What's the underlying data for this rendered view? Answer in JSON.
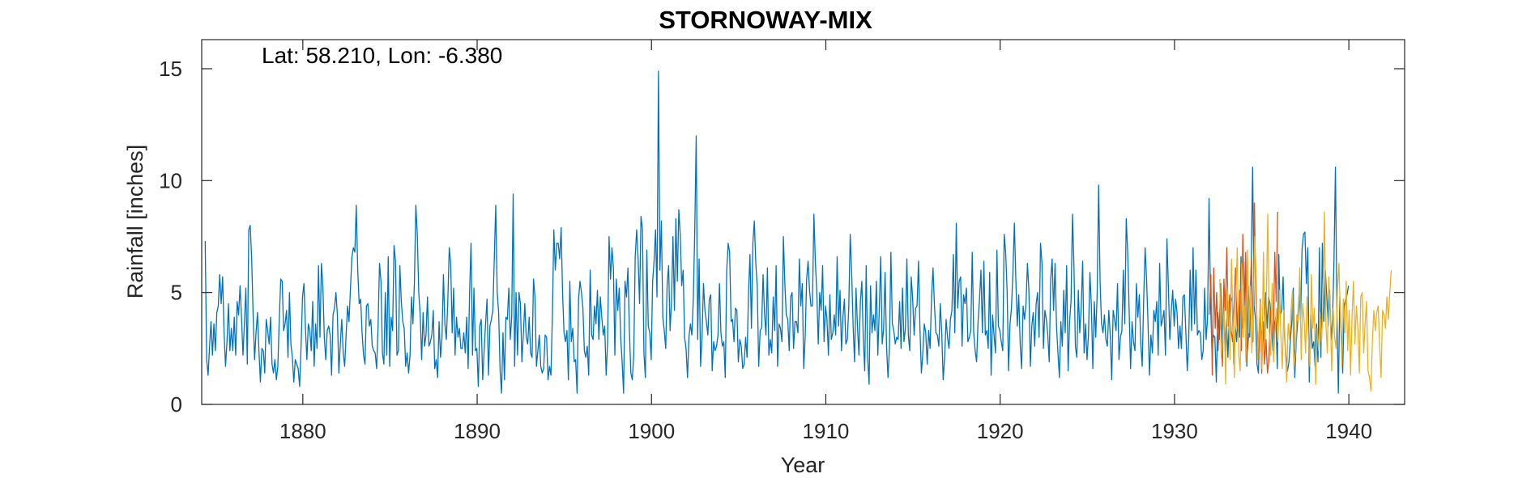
{
  "chart_data": {
    "type": "line",
    "title": "STORNOWAY-MIX",
    "annotation": "Lat: 58.210, Lon: -6.380",
    "xlabel": "Year",
    "ylabel": "Rainfall [inches]",
    "xlim": [
      1874.2,
      1943.2
    ],
    "ylim": [
      0,
      16.3
    ],
    "xticks": [
      1880,
      1890,
      1900,
      1910,
      1920,
      1930,
      1940
    ],
    "yticks": [
      0,
      5,
      10,
      15
    ],
    "grid": false,
    "colors": {
      "blue": "#0072BD",
      "red": "#D95319",
      "yellow": "#EDB120",
      "axis": "#262626"
    },
    "series": [
      {
        "name": "blue",
        "color": "#0072BD",
        "x_start": 1874.4,
        "x_step": 0.08333,
        "values": [
          7.3,
          2.0,
          1.3,
          2.6,
          3.7,
          2.2,
          3.6,
          2.4,
          4.1,
          4.4,
          5.8,
          4.5,
          5.7,
          3.2,
          1.7,
          2.8,
          4.5,
          2.4,
          3.4,
          2.4,
          3.9,
          2.2,
          4.6,
          4.0,
          5.3,
          3.9,
          2.2,
          3.6,
          5.2,
          1.8,
          7.8,
          8.0,
          6.5,
          4.0,
          2.0,
          3.2,
          4.1,
          2.4,
          1.0,
          2.5,
          2.4,
          1.4,
          3.8,
          3.3,
          2.7,
          3.9,
          1.8,
          1.4,
          2.0,
          1.1,
          1.7,
          3.8,
          5.6,
          5.5,
          3.3,
          3.6,
          4.2,
          2.1,
          5.0,
          2.7,
          2.1,
          1.0,
          2.0,
          1.8,
          1.6,
          0.8,
          2.6,
          4.8,
          5.4,
          3.4,
          2.0,
          3.6,
          3.3,
          2.4,
          4.6,
          1.7,
          3.6,
          2.5,
          6.2,
          3.0,
          6.3,
          5.3,
          3.0,
          2.0,
          3.3,
          3.5,
          3.1,
          1.3,
          4.0,
          4.3,
          5.0,
          4.0,
          1.4,
          2.7,
          3.8,
          2.3,
          1.7,
          3.1,
          4.4,
          3.7,
          5.2,
          6.6,
          7.0,
          6.8,
          8.9,
          6.0,
          4.5,
          4.7,
          3.2,
          2.2,
          1.8,
          4.4,
          4.5,
          3.5,
          3.8,
          2.6,
          2.4,
          2.3,
          1.6,
          3.5,
          6.3,
          5.5,
          2.3,
          1.8,
          5.0,
          2.2,
          6.6,
          1.7,
          3.9,
          3.3,
          7.1,
          6.4,
          2.2,
          2.4,
          6.2,
          4.6,
          3.7,
          3.4,
          1.7,
          2.3,
          1.4,
          2.2,
          4.8,
          3.6,
          5.4,
          8.9,
          7.6,
          5.0,
          4.0,
          2.0,
          4.1,
          2.6,
          3.1,
          4.8,
          2.6,
          2.8,
          3.1,
          4.2,
          1.6,
          2.0,
          1.2,
          3.7,
          2.1,
          3.0,
          5.8,
          3.6,
          2.9,
          4.6,
          7.0,
          6.3,
          3.2,
          5.2,
          2.2,
          3.9,
          3.0,
          3.4,
          2.5,
          2.5,
          3.2,
          2.3,
          3.9,
          1.6,
          5.0,
          7.2,
          2.2,
          5.2,
          2.4,
          2.5,
          0.8,
          3.5,
          3.8,
          1.1,
          2.4,
          3.6,
          4.7,
          1.3,
          3.5,
          3.8,
          4.2,
          6.5,
          8.9,
          5.0,
          4.1,
          1.5,
          0.5,
          3.2,
          1.1,
          3.9,
          3.8,
          5.2,
          2.9,
          3.9,
          9.4,
          1.7,
          5.0,
          2.2,
          5.0,
          4.5,
          1.9,
          3.1,
          4.5,
          3.0,
          2.7,
          3.9,
          2.3,
          2.1,
          5.6,
          4.8,
          1.7,
          2.4,
          3.1,
          1.7,
          1.4,
          1.6,
          3.1,
          3.0,
          1.1,
          1.7,
          1.3,
          4.0,
          7.8,
          6.0,
          7.2,
          7.2,
          6.5,
          7.9,
          5.0,
          3.2,
          2.8,
          3.3,
          1.1,
          5.5,
          2.8,
          3.4,
          1.9,
          2.0,
          0.5,
          4.7,
          5.5,
          5.0,
          4.3,
          2.4,
          2.1,
          2.6,
          1.3,
          6.0,
          3.1,
          2.9,
          4.4,
          3.6,
          5.1,
          2.9,
          4.8,
          3.9,
          3.1,
          3.5,
          1.3,
          2.8,
          7.5,
          5.6,
          7.0,
          6.1,
          2.2,
          5.6,
          4.2,
          5.2,
          3.0,
          1.9,
          0.5,
          5.5,
          4.8,
          6.1,
          3.3,
          1.4,
          1.1,
          2.2,
          6.6,
          7.8,
          6.5,
          4.5,
          8.4,
          7.8,
          2.3,
          1.2,
          6.9,
          3.5,
          3.2,
          2.0,
          5.5,
          6.4,
          7.8,
          4.8,
          14.9,
          6.0,
          8.2,
          3.9,
          3.3,
          2.5,
          5.4,
          6.2,
          3.3,
          4.6,
          7.5,
          4.2,
          8.3,
          5.5,
          8.7,
          7.6,
          5.3,
          6.0,
          3.0,
          2.5,
          1.2,
          3.0,
          3.6,
          3.1,
          4.7,
          7.8,
          12.0,
          2.9,
          6.5,
          1.7,
          3.0,
          5.4,
          4.2,
          3.7,
          3.1,
          4.7,
          4.9,
          1.5,
          2.8,
          2.4,
          2.6,
          3.1,
          5.4,
          3.2,
          2.6,
          2.8,
          1.2,
          6.0,
          7.2,
          6.8,
          3.7,
          3.8,
          2.8,
          4.3,
          4.2,
          1.9,
          2.9,
          2.6,
          1.6,
          1.8,
          3.0,
          2.1,
          5.0,
          6.7,
          3.4,
          7.2,
          8.2,
          6.3,
          5.3,
          1.7,
          3.3,
          3.4,
          5.8,
          4.1,
          3.1,
          6.1,
          2.2,
          2.9,
          2.3,
          4.8,
          3.3,
          6.2,
          1.7,
          3.6,
          3.4,
          2.8,
          7.5,
          5.4,
          4.0,
          3.8,
          2.4,
          4.8,
          5.0,
          2.5,
          3.7,
          3.7,
          3.2,
          6.5,
          4.4,
          5.4,
          1.6,
          3.0,
          5.6,
          6.4,
          5.1,
          4.4,
          4.4,
          8.5,
          6.4,
          5.0,
          2.7,
          5.0,
          4.2,
          6.2,
          2.8,
          4.4,
          3.8,
          2.2,
          4.9,
          2.9,
          3.2,
          4.0,
          3.1,
          6.6,
          3.5,
          5.1,
          2.4,
          3.9,
          4.7,
          2.7,
          2.9,
          4.3,
          7.6,
          5.9,
          3.5,
          1.9,
          5.2,
          3.5,
          2.2,
          4.6,
          5.5,
          2.9,
          1.5,
          6.2,
          2.1,
          0.9,
          5.3,
          3.2,
          4.0,
          3.3,
          5.5,
          2.2,
          4.2,
          6.6,
          2.7,
          3.4,
          5.9,
          2.6,
          1.2,
          2.5,
          6.8,
          3.6,
          3.3,
          2.7,
          3.0,
          2.9,
          4.6,
          2.5,
          5.2,
          2.8,
          3.4,
          6.5,
          3.1,
          2.4,
          5.7,
          4.7,
          3.1,
          4.3,
          4.4,
          6.4,
          3.4,
          1.4,
          2.3,
          3.6,
          3.2,
          1.8,
          3.3,
          2.5,
          4.8,
          6.1,
          4.4,
          3.2,
          3.1,
          2.6,
          4.5,
          3.2,
          1.1,
          2.1,
          3.8,
          3.0,
          2.5,
          3.8,
          4.2,
          6.7,
          3.2,
          8.1,
          4.3,
          5.5,
          5.7,
          2.6,
          4.9,
          4.5,
          5.2,
          2.8,
          3.0,
          3.3,
          6.8,
          3.2,
          2.4,
          1.9,
          3.7,
          4.7,
          6.0,
          3.2,
          6.4,
          3.1,
          3.3,
          2.5,
          5.9,
          1.3,
          4.0,
          3.1,
          2.3,
          6.9,
          3.5,
          3.3,
          2.8,
          2.4,
          7.6,
          6.8,
          5.1,
          1.5,
          3.6,
          4.3,
          5.9,
          8.1,
          5.6,
          3.5,
          4.9,
          2.7,
          1.6,
          4.4,
          3.8,
          4.5,
          6.3,
          5.1,
          1.7,
          3.5,
          4.1,
          2.6,
          4.5,
          5.0,
          3.0,
          7.2,
          6.3,
          2.5,
          4.2,
          3.8,
          3.1,
          1.9,
          5.6,
          6.5,
          4.2,
          6.3,
          3.5,
          2.3,
          1.2,
          3.7,
          2.6,
          5.1,
          3.2,
          6.2,
          1.5,
          3.7,
          4.6,
          8.5,
          6.2,
          2.6,
          2.1,
          5.1,
          3.2,
          4.3,
          6.4,
          2.3,
          3.6,
          2.0,
          3.1,
          5.9,
          4.4,
          1.6,
          4.6,
          3.0,
          5.0,
          9.8,
          5.5,
          3.6,
          3.2,
          4.0,
          2.9,
          2.6,
          4.2,
          3.1,
          1.1,
          4.2,
          3.8,
          3.3,
          5.4,
          2.0,
          3.0,
          3.3,
          6.0,
          3.6,
          8.3,
          6.8,
          4.2,
          1.6,
          3.7,
          2.8,
          2.4,
          5.4,
          3.9,
          4.9,
          2.7,
          1.7,
          4.7,
          7.0,
          5.6,
          3.6,
          1.3,
          3.1,
          2.3,
          4.2,
          3.7,
          4.6,
          2.2,
          6.3,
          3.5,
          3.8,
          4.2,
          2.2,
          7.4,
          5.3,
          2.9,
          4.2,
          5.1,
          3.5,
          4.7,
          4.1,
          2.5,
          3.5,
          2.5,
          4.8,
          4.9,
          3.3,
          1.5,
          2.9,
          6.0,
          3.3,
          7.0,
          3.6,
          6.0,
          3.1,
          3.3,
          3.2,
          2.0,
          2.4,
          5.2,
          2.9,
          3.9,
          9.2,
          4.7,
          2.4,
          3.1,
          3.0,
          1.0,
          4.1,
          2.9,
          5.4,
          2.4,
          4.8,
          2.4,
          3.8,
          2.1,
          4.1,
          4.8,
          4.6,
          1.8,
          3.5,
          2.8,
          4.4,
          3.0,
          6.6,
          3.4,
          3.9,
          6.4,
          1.7,
          5.3,
          3.0,
          6.2,
          10.6,
          4.4,
          3.8,
          1.8,
          1.4,
          4.0,
          3.3,
          3.0,
          3.5,
          5.0,
          3.4,
          4.8,
          4.5,
          3.4,
          2.4,
          3.6,
          3.9,
          1.6,
          6.7,
          4.0,
          4.2,
          5.7,
          3.0,
          2.1,
          1.5,
          1.9,
          2.9,
          3.7,
          5.2,
          1.2,
          2.8,
          3.7,
          5.0,
          3.8,
          6.9,
          7.6,
          7.7,
          5.4,
          7.0,
          1.0,
          4.0,
          2.5,
          2.8,
          1.7,
          3.6,
          1.9,
          7.0,
          2.1,
          7.2,
          3.7,
          6.0,
          4.9,
          3.5,
          5.1,
          2.9,
          3.8,
          6.4,
          10.6,
          4.3,
          0.5,
          4.8,
          3.1,
          1.4,
          4.4,
          4.7,
          4.9,
          5.3
        ]
      },
      {
        "name": "red",
        "color": "#D95319",
        "x_start": 1932.0,
        "x_step": 0.08333,
        "values": [
          4.0,
          5.8,
          1.3,
          6.1,
          3.4,
          5.0,
          2.4,
          4.0,
          3.2,
          1.7,
          5.6,
          4.2,
          7.0,
          3.5,
          4.9,
          3.3,
          2.8,
          4.4,
          6.1,
          3.5,
          3.2,
          5.1,
          2.4,
          7.6,
          4.5,
          6.8,
          2.3,
          3.0,
          5.0,
          6.5,
          2.8,
          9.0,
          4.9,
          3.3,
          2.3,
          4.7,
          1.4,
          3.7,
          1.8,
          2.9,
          1.4,
          2.0,
          4.2,
          3.6,
          2.8,
          6.8,
          4.6,
          8.6
        ]
      },
      {
        "name": "yellow",
        "color": "#EDB120",
        "x_start": 1932.6,
        "x_step": 0.08333,
        "values": [
          5.6,
          2.1,
          3.0,
          4.3,
          0.9,
          5.2,
          4.4,
          2.0,
          6.5,
          3.8,
          1.2,
          4.8,
          7.0,
          2.2,
          1.5,
          6.3,
          3.0,
          4.4,
          1.9,
          6.9,
          3.2,
          5.3,
          2.3,
          4.1,
          7.5,
          5.7,
          2.0,
          3.4,
          4.6,
          1.6,
          6.8,
          2.5,
          4.7,
          8.5,
          3.3,
          2.2,
          5.4,
          1.9,
          3.4,
          4.3,
          2.8,
          5.1,
          3.1,
          1.6,
          4.2,
          2.6,
          1.0,
          3.6,
          2.9,
          4.2,
          5.1,
          1.6,
          2.3,
          4.0,
          3.7,
          6.1,
          2.0,
          4.5,
          3.8,
          2.3,
          4.8,
          3.0,
          1.7,
          5.8,
          3.4,
          4.3,
          0.9,
          3.4,
          2.4,
          4.1,
          2.8,
          4.4,
          8.6,
          3.6,
          2.3,
          5.7,
          4.1,
          1.5,
          4.3,
          3.0,
          2.5,
          5.2,
          6.3,
          3.8,
          1.7,
          4.7,
          3.2,
          5.5,
          2.4,
          4.2,
          1.3,
          3.9,
          5.5,
          2.7,
          4.4,
          3.4,
          1.4,
          4.8,
          5.0,
          2.3,
          3.6,
          4.6,
          1.5,
          1.2,
          0.6,
          2.8,
          4.2,
          3.3,
          4.1,
          4.4,
          2.6,
          1.2,
          4.2,
          4.0,
          3.4,
          4.8,
          3.8,
          5.0,
          6.0
        ]
      }
    ]
  }
}
